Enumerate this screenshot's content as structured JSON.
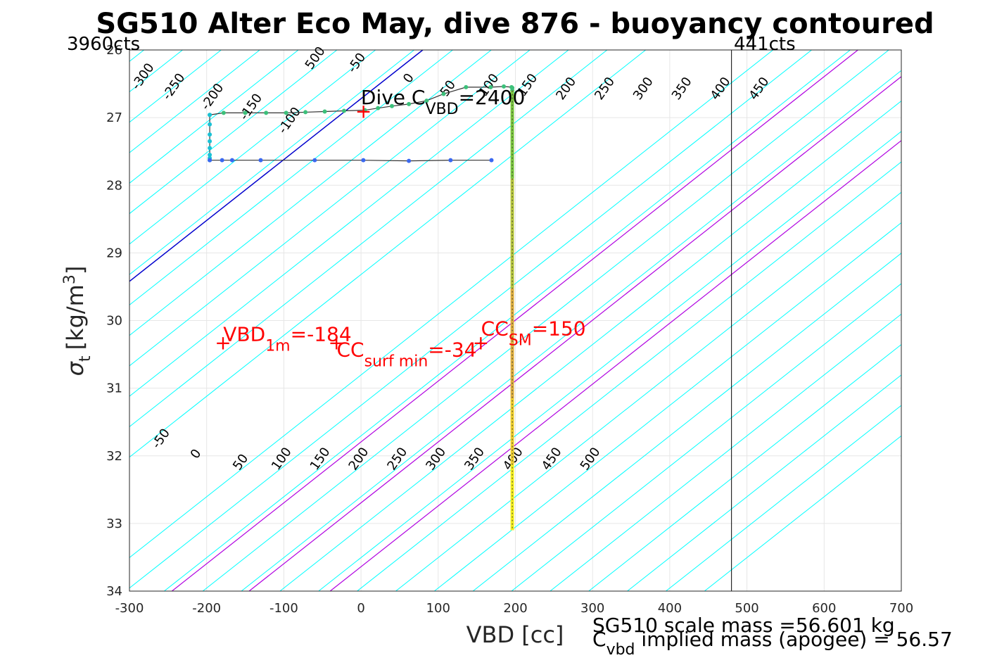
{
  "chart_data": {
    "type": "line",
    "title": "SG510 Alter Eco May, dive 876 - buoyancy contoured",
    "xlabel": "VBD [cc]",
    "ylabel_main": "σ",
    "ylabel_sub": "t",
    "ylabel_unit": "[kg/m",
    "ylabel_sup": "3",
    "ylabel_close": "]",
    "xlim": [
      -300,
      700
    ],
    "ylim": [
      26,
      34
    ],
    "y_reversed": true,
    "grid": true,
    "xticks": [
      "-300",
      "-200",
      "-100",
      "0",
      "100",
      "200",
      "300",
      "400",
      "500",
      "600",
      "700"
    ],
    "yticks": [
      "26",
      "27",
      "28",
      "29",
      "30",
      "31",
      "32",
      "33",
      "34"
    ],
    "corner_left": "3960cts",
    "corner_right": "441cts",
    "contour_levels": [
      -300,
      -250,
      -200,
      -150,
      -100,
      -50,
      0,
      50,
      100,
      150,
      200,
      250,
      300,
      350,
      400,
      450,
      500
    ],
    "contour_slope_cc_per_sigma": 111.1,
    "contour_labels_upper": [
      "-300",
      "-250",
      "-200",
      "-150",
      "-100",
      "-50",
      "0",
      "50",
      "100",
      "150",
      "200",
      "250",
      "300",
      "350",
      "400",
      "450",
      "500"
    ],
    "contour_labels_lower": [
      "-50",
      "0",
      "50",
      "100",
      "150",
      "200",
      "250",
      "300",
      "350",
      "400",
      "450",
      "500"
    ],
    "colors": {
      "contour": "#00ffff",
      "zero_line": "#0000cd",
      "purple_lines": "#b000e0",
      "annotation": "#ff0000",
      "vertical_line": "#000000"
    },
    "reference_lines": {
      "zero_line_x_at_y26": 80,
      "purple_x_at_y34": [
        -245,
        -145,
        -40
      ],
      "vertical_x": 480
    },
    "series": [
      {
        "role": "upper_profile",
        "x": [
          196,
          196,
          195,
          185,
          168,
          136,
          107,
          85,
          62,
          40,
          22,
          5,
          -22,
          -47,
          -72,
          -97,
          -123,
          -150,
          -178,
          -196
        ],
        "y": [
          26.6,
          26.56,
          26.55,
          26.54,
          26.55,
          26.55,
          26.65,
          26.75,
          26.8,
          26.83,
          26.86,
          26.89,
          26.9,
          26.91,
          26.92,
          26.93,
          26.93,
          26.93,
          26.93,
          26.96
        ]
      },
      {
        "role": "left_vertical",
        "x": [
          -196,
          -196,
          -196,
          -196,
          -196,
          -196,
          -196,
          -196
        ],
        "y": [
          26.96,
          27.1,
          27.25,
          27.35,
          27.45,
          27.55,
          27.6,
          27.63
        ]
      },
      {
        "role": "lower_profile",
        "x": [
          -196,
          -180,
          -167,
          -130,
          -60,
          3,
          62,
          116,
          169
        ],
        "y": [
          27.63,
          27.63,
          27.63,
          27.63,
          27.63,
          27.63,
          27.64,
          27.63,
          27.63
        ]
      },
      {
        "role": "vertical_profile",
        "x": [
          196,
          196,
          196,
          196,
          196,
          196,
          196
        ],
        "y": [
          26.6,
          27.5,
          28.5,
          29.5,
          30.5,
          31.5,
          33.1
        ]
      }
    ],
    "annotations": {
      "dive_cvbd_prefix": "Dive C",
      "dive_cvbd_sub": "VBD",
      "dive_cvbd_value": "=2400",
      "dive_cvbd_point": [
        -2,
        26.88
      ],
      "vbd1m_main": "VBD",
      "vbd1m_sub": "1m",
      "vbd1m_value": "=-184",
      "vbd1m_point": [
        -184,
        30.3
      ],
      "ccsurf_main": "CC",
      "ccsurf_sub": "surf min",
      "ccsurf_value": "=-34",
      "ccsurf_point": [
        -37,
        30.3
      ],
      "ccsm_main": "CC",
      "ccsm_sub": "SM",
      "ccsm_value": "=150",
      "ccsm_point": [
        150,
        30.3
      ]
    },
    "bottom_line1": "SG510 scale mass =56.601 kg",
    "bottom_line2_main": "C",
    "bottom_line2_sub": "vbd",
    "bottom_line2_rest": " implied mass (apogee) = 56.57"
  }
}
